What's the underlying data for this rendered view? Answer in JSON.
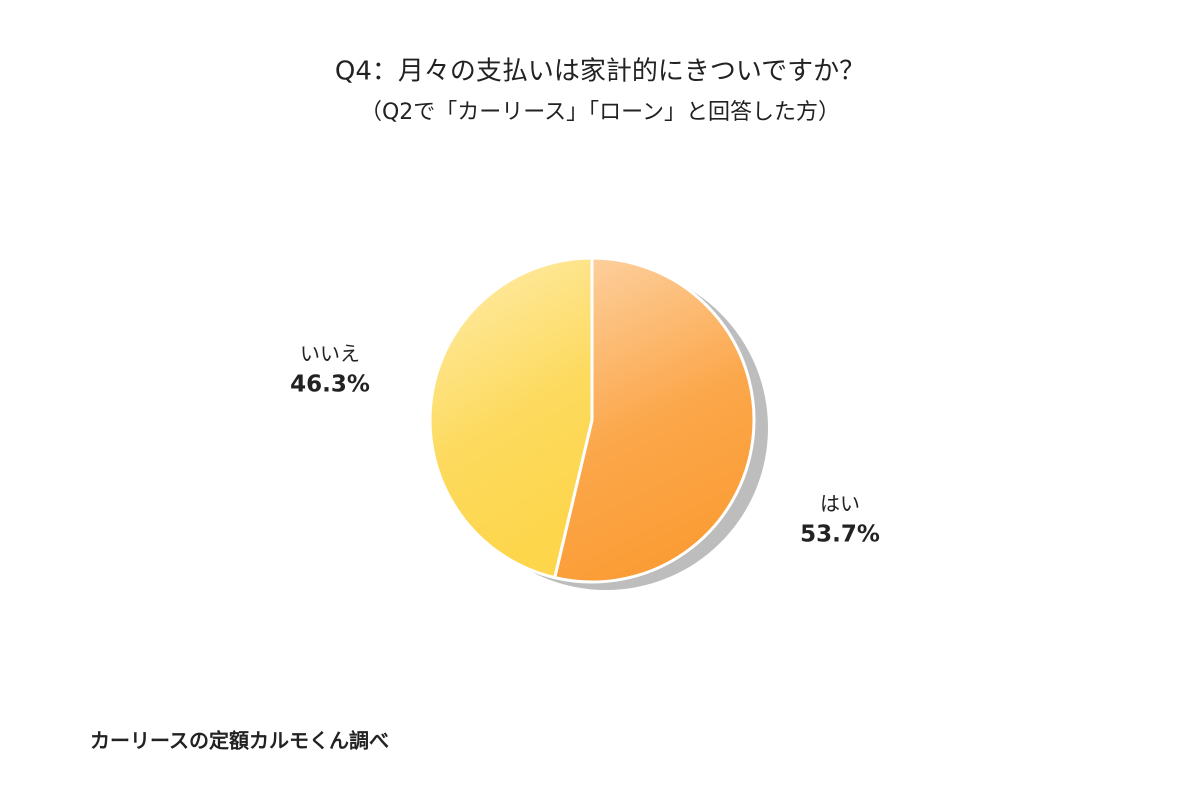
{
  "chart_data": {
    "type": "pie",
    "title": "Q4：月々の支払いは家計的にきついですか？",
    "subtitle": "（Q2で「カーリース」「ローン」と回答した方）",
    "source": "カーリースの定額カルモくん調べ",
    "categories": [
      "はい",
      "いいえ"
    ],
    "values": [
      53.7,
      46.3
    ],
    "value_labels": [
      "53.7%",
      "46.3%"
    ],
    "colors": [
      "#fb9d36",
      "#fdd64c"
    ]
  }
}
